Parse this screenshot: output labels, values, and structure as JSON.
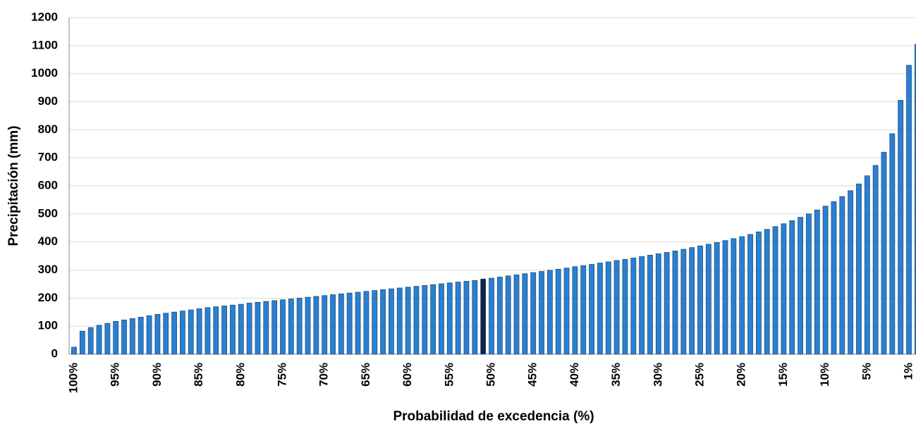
{
  "chart_data": {
    "type": "bar",
    "xlabel": "Probabilidad de excedencia (%)",
    "ylabel": "Precipitación  (mm)",
    "categories": [
      "100%",
      null,
      null,
      null,
      null,
      "95%",
      null,
      null,
      null,
      null,
      "90%",
      null,
      null,
      null,
      null,
      "85%",
      null,
      null,
      null,
      null,
      "80%",
      null,
      null,
      null,
      null,
      "75%",
      null,
      null,
      null,
      null,
      "70%",
      null,
      null,
      null,
      null,
      "65%",
      null,
      null,
      null,
      null,
      "60%",
      null,
      null,
      null,
      null,
      "55%",
      null,
      null,
      null,
      null,
      "50%",
      null,
      null,
      null,
      null,
      "45%",
      null,
      null,
      null,
      null,
      "40%",
      null,
      null,
      null,
      null,
      "35%",
      null,
      null,
      null,
      null,
      "30%",
      null,
      null,
      null,
      null,
      "25%",
      null,
      null,
      null,
      null,
      "20%",
      null,
      null,
      null,
      null,
      "15%",
      null,
      null,
      null,
      null,
      "10%",
      null,
      null,
      null,
      null,
      "5%",
      null,
      null,
      null,
      null,
      "1%",
      null
    ],
    "values": [
      25,
      82,
      95,
      103,
      110,
      117,
      122,
      127,
      132,
      137,
      142,
      146,
      150,
      154,
      158,
      162,
      166,
      169,
      172,
      175,
      178,
      182,
      185,
      188,
      191,
      194,
      197,
      200,
      203,
      206,
      209,
      212,
      215,
      218,
      221,
      224,
      227,
      230,
      233,
      236,
      239,
      242,
      245,
      248,
      251,
      254,
      257,
      260,
      263,
      268,
      271,
      275,
      279,
      283,
      287,
      291,
      295,
      299,
      303,
      307,
      312,
      316,
      320,
      325,
      329,
      334,
      338,
      343,
      348,
      353,
      358,
      363,
      368,
      374,
      380,
      386,
      392,
      398,
      405,
      412,
      419,
      427,
      436,
      445,
      455,
      465,
      476,
      488,
      500,
      514,
      528,
      544,
      562,
      583,
      607,
      636,
      673,
      720,
      786,
      905,
      1030,
      1105
    ],
    "colors": [
      "#2b7fd0",
      "#2b7fd0",
      "#2b7fd0",
      "#2b7fd0",
      "#2b7fd0",
      "#2b7fd0",
      "#2b7fd0",
      "#2b7fd0",
      "#2b7fd0",
      "#2b7fd0",
      "#2b7fd0",
      "#2b7fd0",
      "#2b7fd0",
      "#2b7fd0",
      "#2b7fd0",
      "#2b7fd0",
      "#2b7fd0",
      "#2b7fd0",
      "#2b7fd0",
      "#2b7fd0",
      "#2b7fd0",
      "#2b7fd0",
      "#2b7fd0",
      "#2b7fd0",
      "#2b7fd0",
      "#2b7fd0",
      "#2b7fd0",
      "#2b7fd0",
      "#2b7fd0",
      "#2b7fd0",
      "#2b7fd0",
      "#2b7fd0",
      "#2b7fd0",
      "#2b7fd0",
      "#2b7fd0",
      "#2b7fd0",
      "#2b7fd0",
      "#2b7fd0",
      "#2b7fd0",
      "#2b7fd0",
      "#2b7fd0",
      "#2b7fd0",
      "#2b7fd0",
      "#2b7fd0",
      "#2b7fd0",
      "#2b7fd0",
      "#2b7fd0",
      "#2b7fd0",
      "#2b7fd0",
      "#14233f",
      "#2b7fd0",
      "#2b7fd0",
      "#2b7fd0",
      "#2b7fd0",
      "#2b7fd0",
      "#2b7fd0",
      "#2b7fd0",
      "#2b7fd0",
      "#2b7fd0",
      "#2b7fd0",
      "#2b7fd0",
      "#2b7fd0",
      "#2b7fd0",
      "#2b7fd0",
      "#2b7fd0",
      "#2b7fd0",
      "#2b7fd0",
      "#2b7fd0",
      "#2b7fd0",
      "#2b7fd0",
      "#2b7fd0",
      "#2b7fd0",
      "#2b7fd0",
      "#2b7fd0",
      "#2b7fd0",
      "#2b7fd0",
      "#2b7fd0",
      "#2b7fd0",
      "#2b7fd0",
      "#2b7fd0",
      "#2b7fd0",
      "#2b7fd0",
      "#2b7fd0",
      "#2b7fd0",
      "#2b7fd0",
      "#2b7fd0",
      "#2b7fd0",
      "#2b7fd0",
      "#2b7fd0",
      "#2b7fd0",
      "#2b7fd0",
      "#2b7fd0",
      "#2b7fd0",
      "#2b7fd0",
      "#2b7fd0",
      "#2b7fd0",
      "#2b7fd0",
      "#2b7fd0",
      "#2b7fd0",
      "#2b7fd0",
      "#2b7fd0",
      "#2b7fd0"
    ],
    "ylim": [
      0,
      1200
    ],
    "yticks": [
      0,
      100,
      200,
      300,
      400,
      500,
      600,
      700,
      800,
      900,
      1000,
      1100,
      1200
    ],
    "grid": true
  }
}
